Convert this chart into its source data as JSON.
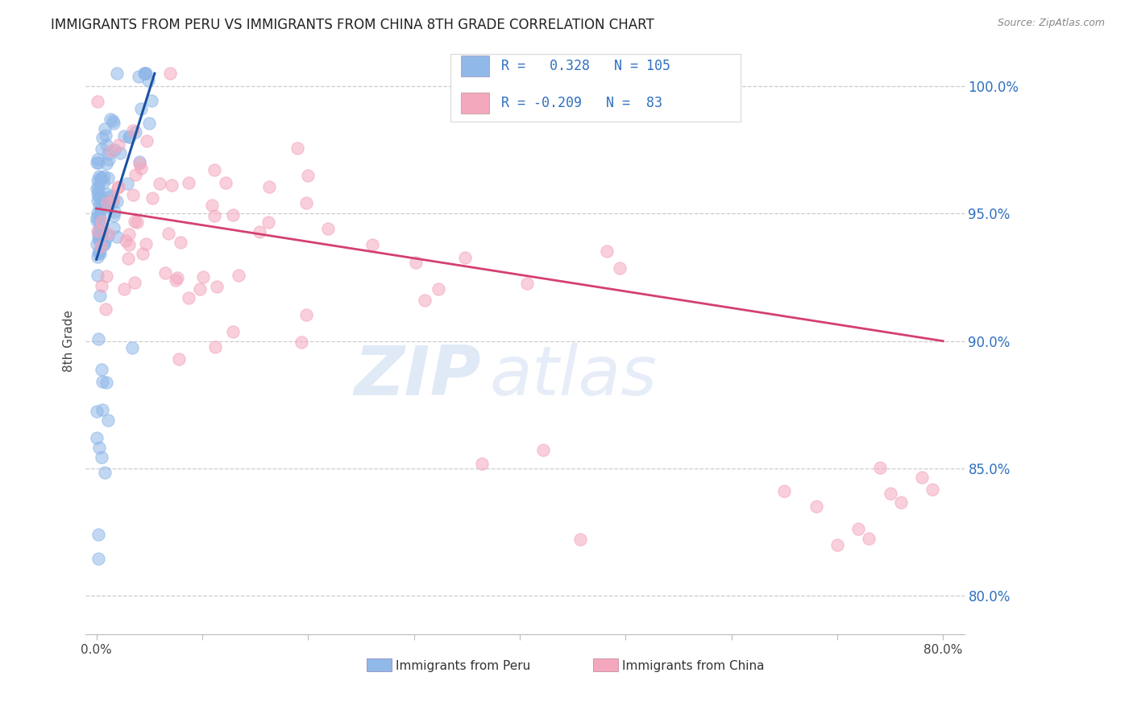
{
  "title": "IMMIGRANTS FROM PERU VS IMMIGRANTS FROM CHINA 8TH GRADE CORRELATION CHART",
  "source_text": "Source: ZipAtlas.com",
  "ylabel": "8th Grade",
  "peru_color": "#90b8e8",
  "china_color": "#f4a8be",
  "peru_R": 0.328,
  "peru_N": 105,
  "china_R": -0.209,
  "china_N": 83,
  "peru_line_color": "#1a52a0",
  "china_line_color": "#d44070",
  "watermark_zip": "ZIP",
  "watermark_atlas": "atlas",
  "legend_label_peru": "Immigrants from Peru",
  "legend_label_china": "Immigrants from China",
  "y_tick_positions": [
    80.0,
    85.0,
    90.0,
    95.0,
    100.0
  ],
  "y_tick_labels": [
    "80.0%",
    "85.0%",
    "90.0%",
    "95.0%",
    "100.0%"
  ],
  "x_tick_positions": [
    0.0,
    0.1,
    0.2,
    0.3,
    0.4,
    0.5,
    0.6,
    0.7,
    0.8
  ],
  "x_tick_labels": [
    "0.0%",
    "",
    "",
    "",
    "",
    "",
    "",
    "",
    "80.0%"
  ],
  "xlim": [
    -0.01,
    0.82
  ],
  "ylim": [
    78.5,
    101.5
  ],
  "title_fontsize": 12,
  "source_fontsize": 9,
  "tick_fontsize": 11,
  "right_tick_color": "#3070c0"
}
